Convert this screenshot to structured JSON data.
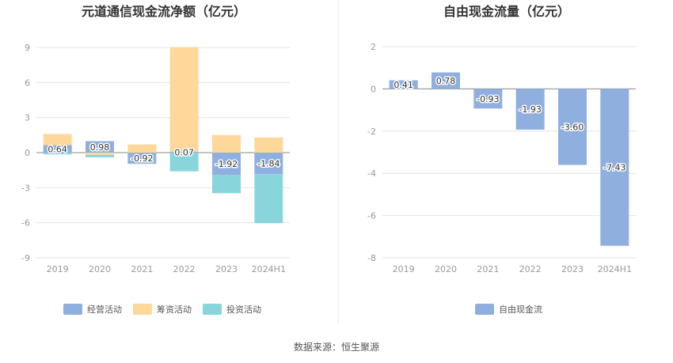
{
  "source_note": "数据来源：恒生聚源",
  "chart_data": [
    {
      "type": "bar",
      "stacked": true,
      "title": "元道通信现金流净额（亿元）",
      "categories": [
        "2019",
        "2020",
        "2021",
        "2022",
        "2023",
        "2024H1"
      ],
      "ylim": [
        -9,
        9
      ],
      "yticks": [
        9,
        6,
        3,
        0,
        -3,
        -6,
        -9
      ],
      "grid": true,
      "legend_position": "bottom",
      "series": [
        {
          "name": "经营活动",
          "color": "#8fb0de",
          "values": [
            0.64,
            0.98,
            -0.92,
            0.07,
            -1.92,
            -1.84
          ],
          "labels": [
            "0.64",
            "0.98",
            "-0.92",
            "0.07",
            "-1.92",
            "-1.84"
          ]
        },
        {
          "name": "筹资活动",
          "color": "#fed79a",
          "values": [
            0.95,
            -0.2,
            0.7,
            8.95,
            1.5,
            1.3
          ]
        },
        {
          "name": "投资活动",
          "color": "#88d6dc",
          "values": [
            -0.15,
            -0.2,
            -0.05,
            -1.6,
            -1.55,
            -4.2
          ]
        }
      ]
    },
    {
      "type": "bar",
      "title": "自由现金流量（亿元）",
      "categories": [
        "2019",
        "2020",
        "2021",
        "2022",
        "2023",
        "2024H1"
      ],
      "ylim": [
        -8,
        2
      ],
      "yticks": [
        2,
        0,
        -2,
        -4,
        -6,
        -8
      ],
      "grid": true,
      "legend_position": "bottom",
      "series": [
        {
          "name": "自由现金流",
          "color": "#8fb0de",
          "values": [
            0.41,
            0.78,
            -0.93,
            -1.93,
            -3.6,
            -7.43
          ],
          "labels": [
            "0.41",
            "0.78",
            "-0.93",
            "-1.93",
            "-3.60",
            "-7.43"
          ]
        }
      ]
    }
  ]
}
